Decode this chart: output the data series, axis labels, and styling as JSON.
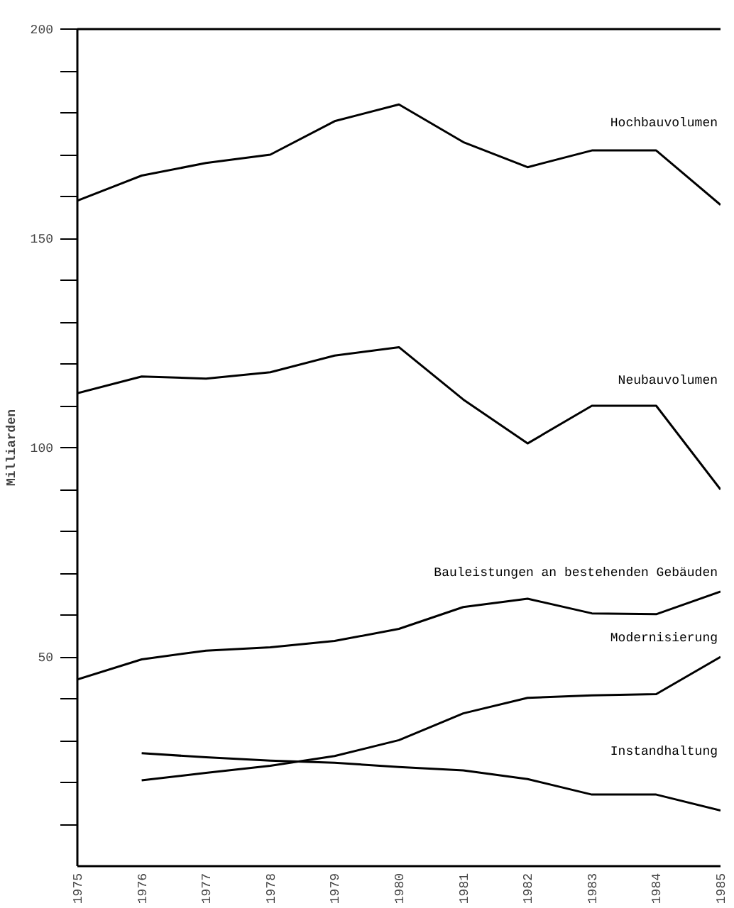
{
  "chart_data": {
    "type": "line",
    "ylabel": "Milliarden",
    "x": [
      1975,
      1976,
      1977,
      1978,
      1979,
      1980,
      1981,
      1982,
      1983,
      1984,
      1985
    ],
    "xlim": [
      1975,
      1985
    ],
    "xticks": [
      1975,
      1976,
      1977,
      1978,
      1979,
      1980,
      1981,
      1982,
      1983,
      1984,
      1985
    ],
    "ylim": [
      0,
      200
    ],
    "yticks": [
      {
        "value": 10,
        "label": null
      },
      {
        "value": 20,
        "label": null
      },
      {
        "value": 30,
        "label": null
      },
      {
        "value": 40,
        "label": null
      },
      50,
      {
        "value": 60,
        "label": null
      },
      {
        "value": 70,
        "label": null
      },
      {
        "value": 80,
        "label": null
      },
      {
        "value": 90,
        "label": null
      },
      100,
      {
        "value": 110,
        "label": null
      },
      {
        "value": 120,
        "label": null
      },
      {
        "value": 130,
        "label": null
      },
      {
        "value": 140,
        "label": null
      },
      150,
      {
        "value": 160,
        "label": null
      },
      {
        "value": 170,
        "label": null
      },
      {
        "value": 180,
        "label": null
      },
      {
        "value": 190,
        "label": null
      },
      200
    ],
    "grid": false,
    "legend": false,
    "marker": "none",
    "line_style": "solid",
    "series": [
      {
        "name": "Hochbauvolumen",
        "color": "#000000",
        "values": [
          159,
          165,
          168,
          170,
          178,
          182,
          173,
          167,
          171,
          171,
          158
        ]
      },
      {
        "name": "Neubauvolumen",
        "color": "#000000",
        "values": [
          113,
          117,
          116.5,
          118,
          122,
          124,
          111.5,
          101,
          110,
          110,
          90
        ]
      },
      {
        "name": "Bauleistungen an bestehenden Gebäuden",
        "color": "#000000",
        "values": [
          44.6,
          49.4,
          51.5,
          52.3,
          53.8,
          56.7,
          61.9,
          63.9,
          60.4,
          60.2,
          65.6
        ]
      },
      {
        "name": "Modernisierung",
        "color": "#000000",
        "values": [
          null,
          20.5,
          22.3,
          24,
          26.3,
          30.1,
          36.5,
          40.2,
          40.8,
          41.1,
          50
        ]
      },
      {
        "name": "Instandhaltung",
        "color": "#000000",
        "values": [
          null,
          27,
          26,
          25.2,
          24.7,
          23.7,
          22.9,
          20.8,
          17.1,
          17.1,
          13.3
        ]
      }
    ]
  }
}
